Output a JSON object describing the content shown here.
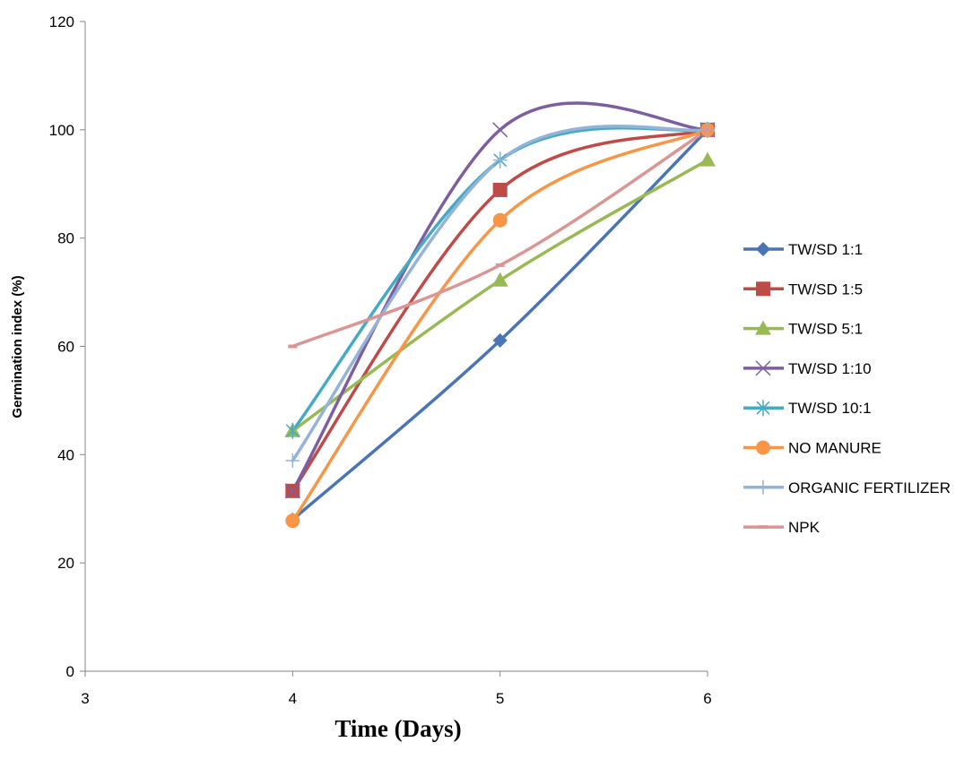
{
  "chart_data": {
    "type": "line",
    "smooth": true,
    "title": "",
    "xlabel": "Time (Days)",
    "ylabel": "Germination index (%)",
    "xlim": [
      3,
      6
    ],
    "ylim": [
      0,
      120
    ],
    "xticks": [
      "3",
      "4",
      "5",
      "6"
    ],
    "yticks": [
      "0",
      "20",
      "40",
      "60",
      "80",
      "100",
      "120"
    ],
    "grid": false,
    "legend_position": "right",
    "x": [
      4,
      5,
      6
    ],
    "series": [
      {
        "name": "TW/SD 1:1",
        "values": [
          28,
          61.1,
          100
        ],
        "color": "#4a74b4",
        "marker": "diamond"
      },
      {
        "name": "TW/SD 1:5",
        "values": [
          33.3,
          88.9,
          100
        ],
        "color": "#be4b48",
        "marker": "square"
      },
      {
        "name": "TW/SD 5:1",
        "values": [
          44.4,
          72.2,
          94.4
        ],
        "color": "#98b954",
        "marker": "triangle"
      },
      {
        "name": "TW/SD 1:10",
        "values": [
          33.3,
          100,
          100
        ],
        "color": "#7d5fa0",
        "marker": "x"
      },
      {
        "name": "TW/SD 10:1",
        "values": [
          44.4,
          94.4,
          100
        ],
        "color": "#46aac4",
        "marker": "asterisk"
      },
      {
        "name": "NO MANURE",
        "values": [
          27.8,
          83.3,
          100
        ],
        "color": "#f79646",
        "marker": "circle"
      },
      {
        "name": "ORGANIC FERTILIZER",
        "values": [
          38.9,
          94.4,
          100
        ],
        "color": "#95b3d7",
        "marker": "plus"
      },
      {
        "name": "NPK",
        "values": [
          60,
          75,
          100
        ],
        "color": "#d99694",
        "marker": "dash"
      }
    ]
  }
}
